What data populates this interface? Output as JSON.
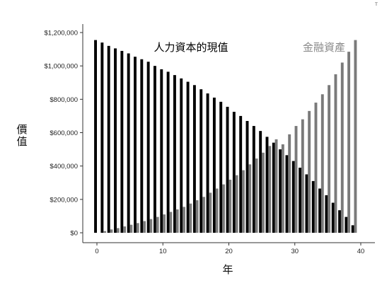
{
  "chart_data": {
    "type": "bar",
    "xlabel": "年",
    "ylabel": "價值",
    "xlim": [
      0,
      40
    ],
    "ylim": [
      0,
      1200000
    ],
    "xticks": [
      0,
      10,
      20,
      30,
      40
    ],
    "yticks": [
      0,
      200000,
      400000,
      600000,
      800000,
      1000000,
      1200000
    ],
    "ytick_labels": [
      "$0",
      "$200,000",
      "$400,000",
      "$600,000",
      "$800,000",
      "$1,000,000",
      "$1,200,000"
    ],
    "grid": false,
    "x": [
      0,
      1,
      2,
      3,
      4,
      5,
      6,
      7,
      8,
      9,
      10,
      11,
      12,
      13,
      14,
      15,
      16,
      17,
      18,
      19,
      20,
      21,
      22,
      23,
      24,
      25,
      26,
      27,
      28,
      29,
      30,
      31,
      32,
      33,
      34,
      35,
      36,
      37,
      38,
      39,
      40
    ],
    "series": [
      {
        "name": "人力資本的現值",
        "color": "#000000",
        "values": [
          1155000,
          1140000,
          1120000,
          1105000,
          1090000,
          1075000,
          1055000,
          1040000,
          1025000,
          1000000,
          980000,
          965000,
          945000,
          925000,
          905000,
          885000,
          860000,
          835000,
          810000,
          785000,
          755000,
          725000,
          700000,
          670000,
          640000,
          610000,
          575000,
          540000,
          500000,
          465000,
          430000,
          390000,
          350000,
          310000,
          265000,
          225000,
          180000,
          135000,
          95000,
          45000,
          0
        ]
      },
      {
        "name": "金融資產",
        "color": "#7a7a7a",
        "values": [
          0,
          10000,
          20000,
          28000,
          38000,
          48000,
          58000,
          70000,
          82000,
          95000,
          110000,
          125000,
          140000,
          155000,
          175000,
          195000,
          215000,
          240000,
          265000,
          290000,
          318000,
          345000,
          375000,
          410000,
          445000,
          480000,
          520000,
          560000,
          530000,
          590000,
          640000,
          680000,
          730000,
          780000,
          830000,
          885000,
          950000,
          1020000,
          1085000,
          1155000,
          0
        ]
      }
    ],
    "corner_mark": "T"
  }
}
